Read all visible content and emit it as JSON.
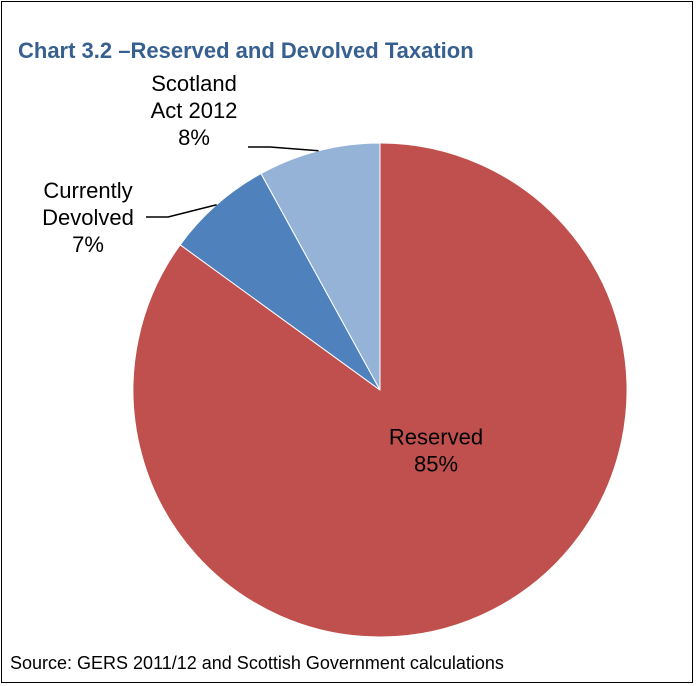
{
  "chart_data": {
    "type": "pie",
    "title": "Chart 3.2 –Reserved and Devolved Taxation",
    "slices": [
      {
        "name": "Reserved",
        "value": 85,
        "label_lines": [
          "Reserved",
          "85%"
        ],
        "color": "#C0504D"
      },
      {
        "name": "Currently Devolved",
        "value": 7,
        "label_lines": [
          "Currently",
          "Devolved",
          "7%"
        ],
        "color": "#4F81BD"
      },
      {
        "name": "Scotland Act 2012",
        "value": 8,
        "label_lines": [
          "Scotland",
          "Act 2012",
          "8%"
        ],
        "color": "#95B3D7"
      }
    ],
    "source": "Source: GERS 2011/12 and Scottish Government calculations"
  }
}
